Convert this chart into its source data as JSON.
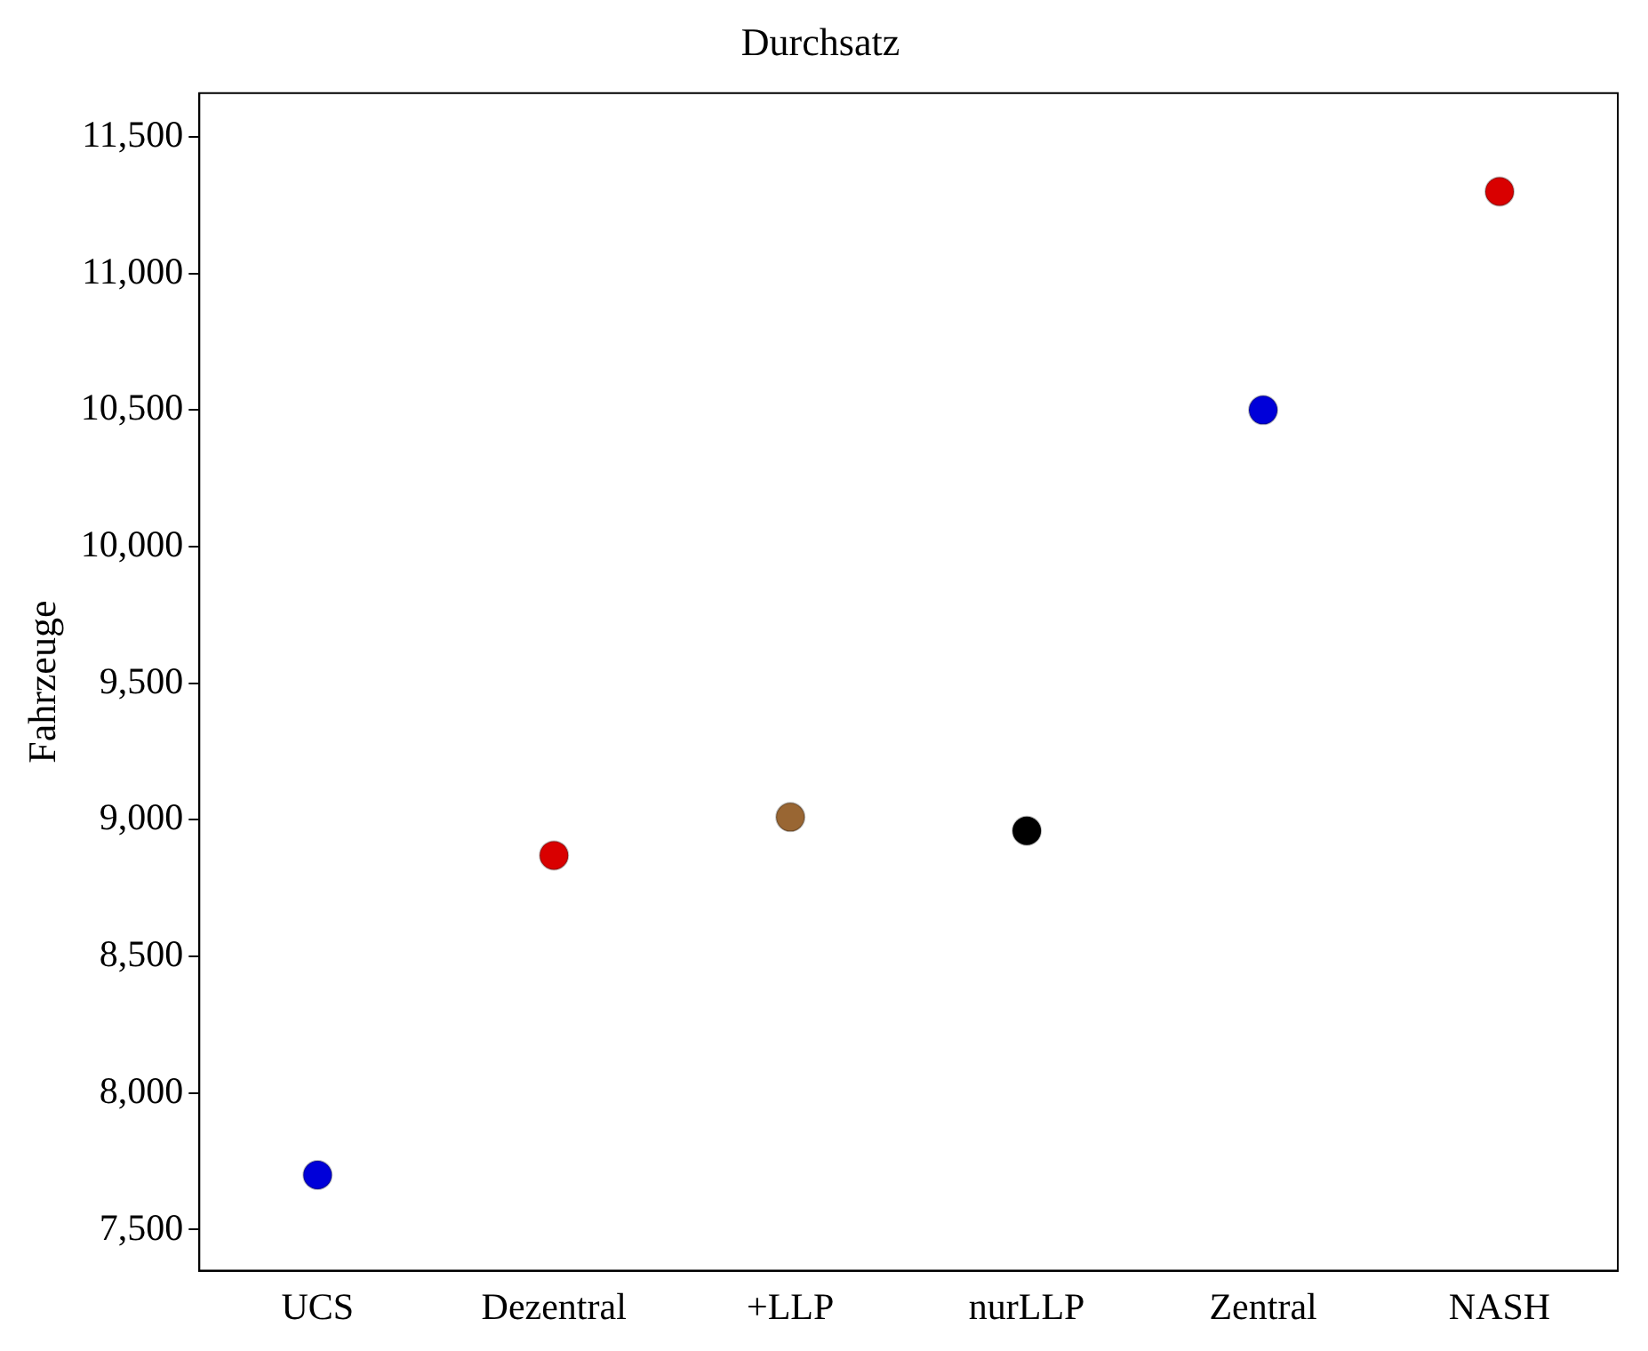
{
  "chart_data": {
    "type": "scatter",
    "title": "Durchsatz",
    "ylabel": "Fahrzeuge",
    "categories": [
      "UCS",
      "Dezentral",
      "+LLP",
      "nurLLP",
      "Zentral",
      "NASH"
    ],
    "series": [
      {
        "values": [
          7700,
          8870,
          9010,
          8960,
          10500,
          11300
        ],
        "colors": [
          "#0000d9",
          "#d90000",
          "#996633",
          "#000000",
          "#0000d9",
          "#d90000"
        ]
      }
    ],
    "ylim": [
      7350,
      11660
    ],
    "yticks": [
      {
        "value": 7500,
        "label": "7,500"
      },
      {
        "value": 8000,
        "label": "8,000"
      },
      {
        "value": 8500,
        "label": "8,500"
      },
      {
        "value": 9000,
        "label": "9,000"
      },
      {
        "value": 9500,
        "label": "9,500"
      },
      {
        "value": 10000,
        "label": "10,000"
      },
      {
        "value": 10500,
        "label": "10,500"
      },
      {
        "value": 11000,
        "label": "11,000"
      },
      {
        "value": 11500,
        "label": "11,500"
      }
    ],
    "marker": "circle",
    "grid": false,
    "legend": false
  }
}
